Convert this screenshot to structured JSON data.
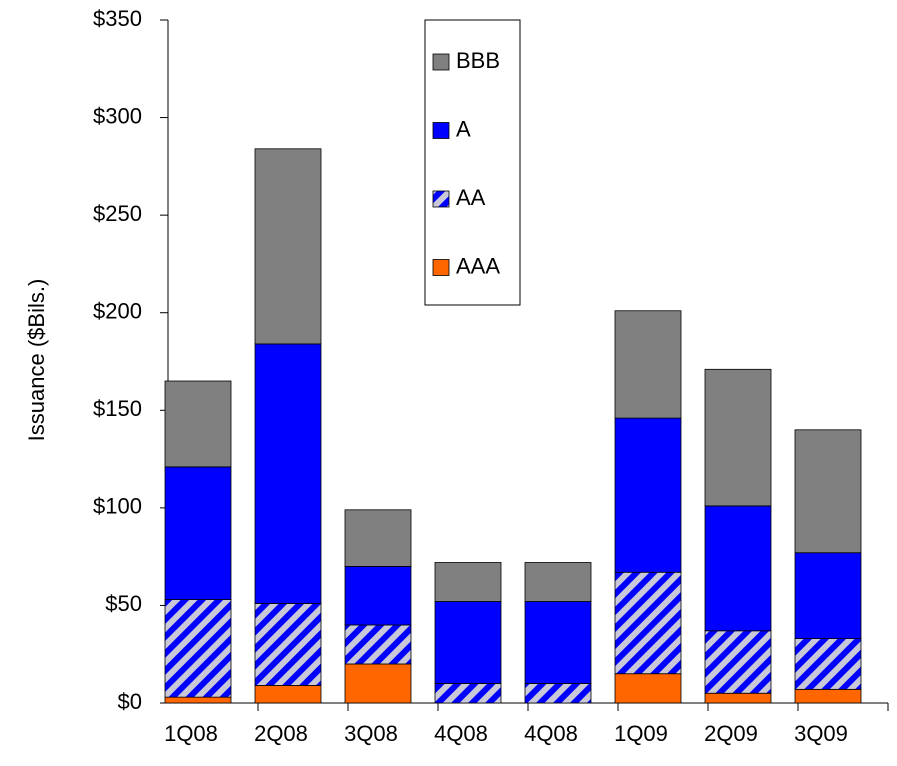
{
  "chart_data": {
    "type": "stacked_bar",
    "y_label": "Issuance ($Bils.)",
    "categories": [
      "1Q08",
      "2Q08",
      "3Q08",
      "4Q08",
      "4Q08",
      "1Q09",
      "2Q09",
      "3Q09"
    ],
    "series": [
      {
        "name": "AAA",
        "color": "#ff6600",
        "values": [
          3,
          9,
          20,
          0,
          0,
          15,
          5,
          7
        ]
      },
      {
        "name": "AA",
        "color": "#0000ff",
        "hatch": true,
        "values": [
          50,
          42,
          20,
          10,
          10,
          52,
          32,
          26
        ]
      },
      {
        "name": "A",
        "color": "#0000ff",
        "values": [
          68,
          133,
          30,
          42,
          42,
          79,
          64,
          44
        ]
      },
      {
        "name": "BBB",
        "color": "#808080",
        "values": [
          44,
          100,
          29,
          20,
          20,
          55,
          70,
          63
        ]
      }
    ],
    "ylim": [
      0,
      350
    ],
    "yticks": [
      {
        "value": 0,
        "label": "$0"
      },
      {
        "value": 50,
        "label": "$50"
      },
      {
        "value": 100,
        "label": "$100"
      },
      {
        "value": 150,
        "label": "$150"
      },
      {
        "value": 200,
        "label": "$200"
      },
      {
        "value": 250,
        "label": "$250"
      },
      {
        "value": 300,
        "label": "$300"
      },
      {
        "value": 350,
        "label": "$350"
      }
    ],
    "legend": "top"
  }
}
